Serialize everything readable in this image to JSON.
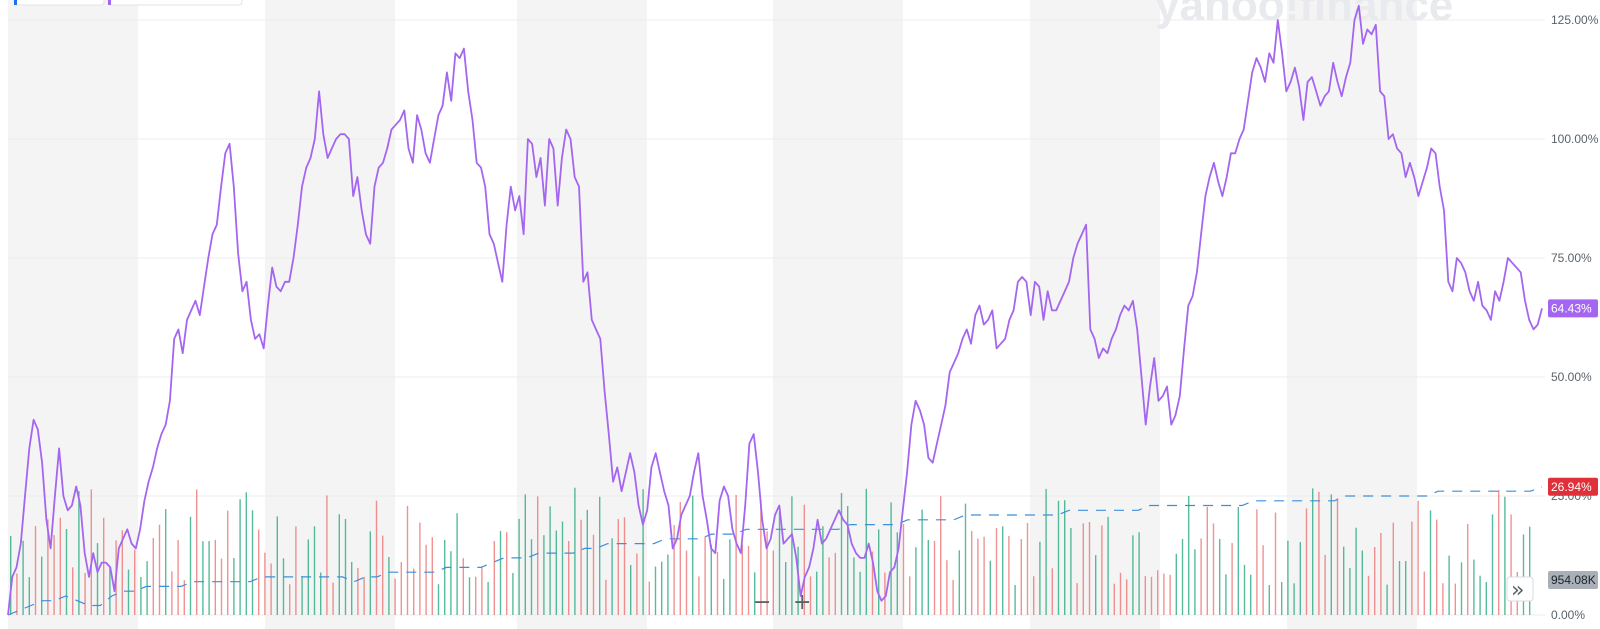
{
  "watermark": "yahoo!finance",
  "controls": {
    "zoom_out": "−",
    "zoom_in": "+",
    "expand": "»"
  },
  "colors": {
    "stock_line": "#a466f0",
    "benchmark_line": "#3d8fd9",
    "volume_up": "#1fa67a",
    "volume_down": "#eb6d6d",
    "last_badge_stock": "#a466f0",
    "last_badge_benchmark": "#e0313b",
    "volume_badge": "#a9b0b8",
    "band_shade": "#f4f4f4"
  },
  "chart_data": {
    "type": "line",
    "y_unit": "%",
    "ylim": [
      -2,
      130
    ],
    "y_ticks": [
      "125.00%",
      "100.00%",
      "75.00%",
      "50.00%",
      "25.00%",
      "0.00%"
    ],
    "y_tick_values": [
      125,
      100,
      75,
      50,
      25,
      0
    ],
    "grid": true,
    "series": [
      {
        "role": "stock",
        "values": [
          0,
          8,
          10,
          15,
          25,
          35,
          41,
          39,
          32,
          20,
          14,
          25,
          35,
          25,
          22,
          23,
          27,
          23,
          13,
          8,
          13,
          9,
          11,
          11,
          10,
          5,
          14,
          16,
          18,
          15,
          14,
          18,
          24,
          28,
          31,
          35,
          38,
          40,
          45,
          58,
          60,
          55,
          62,
          64,
          66,
          63,
          69,
          75,
          80,
          82,
          90,
          97,
          99,
          90,
          76,
          68,
          70,
          62,
          58,
          59,
          56,
          65,
          73,
          69,
          68,
          70,
          70,
          75,
          82,
          90,
          94,
          96,
          100,
          110,
          101,
          96,
          98,
          100,
          101,
          101,
          100,
          88,
          92,
          85,
          80,
          78,
          90,
          94,
          95,
          98,
          102,
          103,
          104,
          106,
          98,
          95,
          105,
          102,
          97,
          95,
          100,
          105,
          107,
          114,
          108,
          118,
          117,
          119,
          110,
          104,
          95,
          94,
          90,
          80,
          78,
          74,
          70,
          82,
          90,
          85,
          88,
          80,
          100,
          99,
          92,
          96,
          86,
          100,
          98,
          86,
          96,
          102,
          100,
          92,
          90,
          70,
          72,
          62,
          60,
          58,
          47,
          38,
          28,
          31,
          26,
          30,
          34,
          30,
          23,
          19,
          22,
          31,
          34,
          30,
          26,
          23,
          14,
          16,
          21,
          23,
          25,
          30,
          34,
          25,
          20,
          14,
          13,
          24,
          27,
          25,
          18,
          15,
          13,
          23,
          36,
          38,
          30,
          20,
          14,
          16,
          21,
          23,
          15,
          16,
          17,
          12,
          4,
          8,
          10,
          14,
          20,
          15,
          16,
          18,
          20,
          22,
          20,
          19,
          15,
          13,
          12,
          12,
          15,
          11,
          5,
          3,
          4,
          9,
          10,
          14,
          22,
          30,
          40,
          45,
          43,
          40,
          33,
          32,
          36,
          40,
          44,
          51,
          53,
          55,
          58,
          60,
          57,
          63,
          65,
          61,
          62,
          64,
          56,
          57,
          58,
          62,
          64,
          70,
          71,
          70,
          63,
          70,
          69,
          62,
          68,
          64,
          64,
          66,
          68,
          70,
          75,
          78,
          80,
          82,
          60,
          58,
          54,
          56,
          55,
          58,
          60,
          63,
          65,
          64,
          66,
          60,
          50,
          40,
          48,
          54,
          45,
          46,
          48,
          40,
          42,
          46,
          56,
          65,
          67,
          72,
          80,
          88,
          92,
          95,
          91,
          88,
          92,
          97,
          97,
          100,
          102,
          108,
          114,
          117,
          115,
          112,
          118,
          116,
          125,
          118,
          110,
          112,
          115,
          111,
          104,
          112,
          113,
          110,
          107,
          109,
          110,
          116,
          112,
          109,
          113,
          116,
          125,
          128,
          120,
          123,
          122,
          124,
          110,
          109,
          100,
          101,
          98,
          97,
          92,
          95,
          92,
          88,
          91,
          94,
          98,
          97,
          90,
          85,
          70,
          68,
          75,
          74,
          72,
          68,
          66,
          70,
          65,
          64,
          62,
          68,
          66,
          70,
          75,
          74,
          73,
          72,
          66,
          62,
          60,
          61,
          64.43
        ],
        "last_label": "64.43%"
      },
      {
        "role": "benchmark",
        "values": [
          0,
          1,
          2,
          3,
          3,
          4,
          3,
          2,
          2,
          4,
          5,
          5,
          6,
          6,
          6,
          6,
          7,
          7,
          7,
          7,
          7,
          7,
          8,
          8,
          8,
          8,
          8,
          8,
          8,
          8,
          7,
          8,
          8,
          9,
          9,
          9,
          9,
          9,
          10,
          10,
          10,
          10,
          11,
          12,
          12,
          12,
          13,
          13,
          13,
          13,
          14,
          14,
          15,
          15,
          15,
          15,
          15,
          16,
          16,
          16,
          16,
          17,
          17,
          17,
          18,
          18,
          18,
          18,
          18,
          18,
          18,
          18,
          18,
          19,
          19,
          19,
          19,
          19,
          20,
          20,
          20,
          20,
          20,
          21,
          21,
          21,
          21,
          21,
          21,
          21,
          21,
          21,
          22,
          22,
          22,
          22,
          22,
          22,
          22,
          23,
          23,
          23,
          23,
          23,
          23,
          23,
          23,
          23,
          24,
          24,
          24,
          24,
          24,
          24,
          24,
          24,
          25,
          25,
          25,
          25,
          25,
          25,
          25,
          25,
          26,
          26,
          26,
          26,
          26,
          26,
          26,
          26,
          26,
          26.94
        ],
        "last_label": "26.94%"
      }
    ],
    "volume": {
      "last_label": "954.08K"
    }
  }
}
